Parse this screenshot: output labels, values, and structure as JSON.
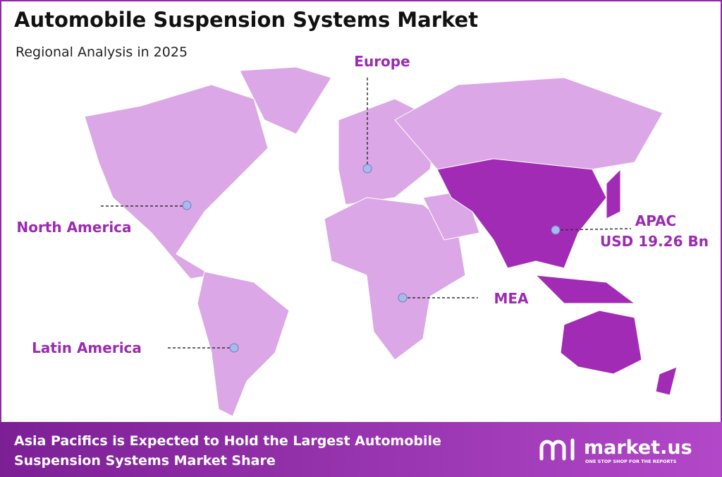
{
  "header": {
    "title": "Automobile Suspension Systems Market",
    "subtitle": "Regional Analysis in 2025"
  },
  "regions": [
    {
      "label": "Europe"
    },
    {
      "label": "North America"
    },
    {
      "label": "Latin America"
    },
    {
      "label": "MEA"
    },
    {
      "label": "APAC",
      "value": "USD 19.26 Bn"
    }
  ],
  "footer": {
    "lines": [
      "Asia Pacifics is Expected to Hold the Largest Automobile",
      "Suspension Systems Market Share"
    ],
    "logo": "market.us",
    "tagline": "ONE STOP SHOP FOR THE REPORTS"
  }
}
